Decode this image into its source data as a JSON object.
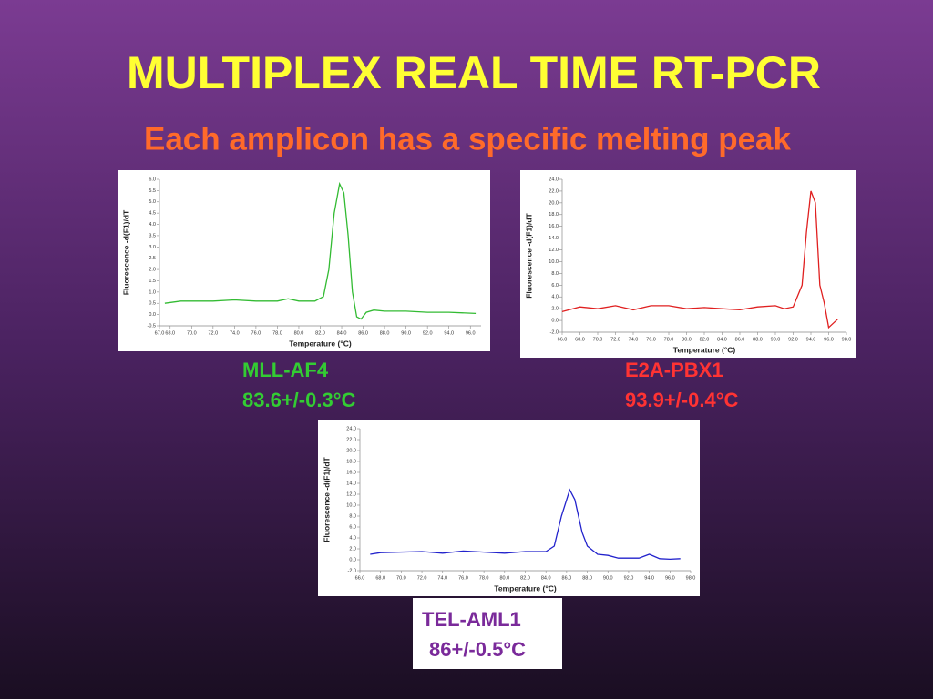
{
  "title": "MULTIPLEX REAL TIME RT-PCR",
  "subtitle": "Each amplicon has a specific melting peak",
  "chart_data": [
    {
      "type": "line",
      "label": "MLL-AF4",
      "melting_temp": "83.6+/-0.3°C",
      "label_color": "#33cc33",
      "x_label": "Temperature (°C)",
      "y_label": "Fluorescence -d(F1)/dT",
      "x": [
        67.5,
        69,
        72,
        74,
        76,
        78,
        79,
        80,
        81.5,
        82.3,
        82.8,
        83.3,
        83.8,
        84.2,
        84.6,
        85.0,
        85.4,
        85.8,
        86.3,
        87,
        88,
        90,
        92,
        94,
        96.5
      ],
      "series": [
        {
          "color": "#33bb33",
          "values": [
            0.5,
            0.6,
            0.6,
            0.65,
            0.6,
            0.6,
            0.7,
            0.6,
            0.6,
            0.8,
            2.0,
            4.5,
            5.8,
            5.4,
            3.5,
            1.0,
            -0.1,
            -0.2,
            0.1,
            0.2,
            0.15,
            0.15,
            0.1,
            0.1,
            0.05
          ]
        }
      ],
      "xlim": [
        67,
        97
      ],
      "xticks": [
        {
          "value": 67,
          "label": "67.0"
        },
        {
          "value": 68,
          "label": "68.0"
        },
        {
          "value": 70,
          "label": "70.0"
        },
        {
          "value": 72,
          "label": "72.0"
        },
        {
          "value": 74,
          "label": "74.0"
        },
        {
          "value": 76,
          "label": "76.0"
        },
        {
          "value": 78,
          "label": "78.0"
        },
        {
          "value": 80,
          "label": "80.0"
        },
        {
          "value": 82,
          "label": "82.0"
        },
        {
          "value": 84,
          "label": "84.0"
        },
        {
          "value": 86,
          "label": "86.0"
        },
        {
          "value": 88,
          "label": "88.0"
        },
        {
          "value": 90,
          "label": "90.0"
        },
        {
          "value": 92,
          "label": "92.0"
        },
        {
          "value": 94,
          "label": "94.0"
        },
        {
          "value": 96,
          "label": "96.0"
        }
      ],
      "ylim": [
        -0.5,
        6.0
      ],
      "yticks": [
        -0.5,
        {
          "value": 0,
          "label": "0.0"
        },
        0.5,
        {
          "value": 1,
          "label": "1.0"
        },
        1.5,
        {
          "value": 2,
          "label": "2.0"
        },
        2.5,
        {
          "value": 3,
          "label": "3.0"
        },
        3.5,
        {
          "value": 4,
          "label": "4.0"
        },
        4.5,
        {
          "value": 5,
          "label": "5.0"
        },
        5.5,
        {
          "value": 6,
          "label": "6.0"
        }
      ]
    },
    {
      "type": "line",
      "label": "E2A-PBX1",
      "melting_temp": "93.9+/-0.4°C",
      "label_color": "#ff3333",
      "x_label": "Temperature (°C)",
      "y_label": "Fluorescence -d(F1)/dT",
      "x": [
        66,
        68,
        70,
        72,
        74,
        76,
        78,
        80,
        82,
        84,
        86,
        88,
        90,
        91,
        92,
        93,
        93.5,
        94,
        94.5,
        95,
        95.5,
        96,
        96.5,
        97
      ],
      "series": [
        {
          "color": "#e02020",
          "values": [
            1.5,
            2.3,
            2.0,
            2.5,
            1.8,
            2.5,
            2.5,
            2.0,
            2.2,
            2.0,
            1.8,
            2.3,
            2.5,
            2.0,
            2.3,
            6,
            15,
            22,
            20,
            6,
            3,
            -1.2,
            -0.5,
            0.2
          ]
        }
      ],
      "xlim": [
        66,
        98
      ],
      "xticks": [
        {
          "value": 66,
          "label": "66.0"
        },
        {
          "value": 68,
          "label": "68.0"
        },
        {
          "value": 70,
          "label": "70.0"
        },
        {
          "value": 72,
          "label": "72.0"
        },
        {
          "value": 74,
          "label": "74.0"
        },
        {
          "value": 76,
          "label": "76.0"
        },
        {
          "value": 78,
          "label": "78.0"
        },
        {
          "value": 80,
          "label": "80.0"
        },
        {
          "value": 82,
          "label": "82.0"
        },
        {
          "value": 84,
          "label": "84.0"
        },
        {
          "value": 86,
          "label": "86.0"
        },
        {
          "value": 88,
          "label": "88.0"
        },
        {
          "value": 90,
          "label": "90.0"
        },
        {
          "value": 92,
          "label": "92.0"
        },
        {
          "value": 94,
          "label": "94.0"
        },
        {
          "value": 96,
          "label": "96.0"
        },
        {
          "value": 98,
          "label": "98.0"
        }
      ],
      "ylim": [
        -2,
        24
      ],
      "yticks": [
        {
          "value": -2,
          "label": "-2.0"
        },
        {
          "value": 0,
          "label": "0.0"
        },
        {
          "value": 2,
          "label": "2.0"
        },
        {
          "value": 4,
          "label": "4.0"
        },
        {
          "value": 6,
          "label": "6.0"
        },
        {
          "value": 8,
          "label": "8.0"
        },
        {
          "value": 10,
          "label": "10.0"
        },
        {
          "value": 12,
          "label": "12.0"
        },
        {
          "value": 14,
          "label": "14.0"
        },
        {
          "value": 16,
          "label": "16.0"
        },
        {
          "value": 18,
          "label": "18.0"
        },
        {
          "value": 20,
          "label": "20.0"
        },
        {
          "value": 22,
          "label": "22.0"
        },
        {
          "value": 24,
          "label": "24.0"
        }
      ]
    },
    {
      "type": "line",
      "label": "TEL-AML1",
      "melting_temp": "86+/-0.5°C",
      "label_color": "#7a2a9a",
      "x_label": "Temperature (°C)",
      "y_label": "Fluorescence -d(F1)/dT",
      "x": [
        67,
        68,
        72,
        74,
        76,
        78,
        80,
        82,
        84,
        84.8,
        85.5,
        86.3,
        86.8,
        87.5,
        88,
        89,
        90,
        91,
        93,
        94,
        95,
        96,
        97
      ],
      "series": [
        {
          "color": "#2222cc",
          "values": [
            1.0,
            1.3,
            1.5,
            1.2,
            1.6,
            1.4,
            1.2,
            1.5,
            1.5,
            2.5,
            8,
            12.8,
            11,
            5,
            2.5,
            1.0,
            0.8,
            0.3,
            0.3,
            1.0,
            0.2,
            0.1,
            0.2
          ]
        }
      ],
      "xlim": [
        66,
        98
      ],
      "xticks": [
        {
          "value": 66,
          "label": "66.0"
        },
        {
          "value": 68,
          "label": "68.0"
        },
        {
          "value": 70,
          "label": "70.0"
        },
        {
          "value": 72,
          "label": "72.0"
        },
        {
          "value": 74,
          "label": "74.0"
        },
        {
          "value": 76,
          "label": "76.0"
        },
        {
          "value": 78,
          "label": "78.0"
        },
        {
          "value": 80,
          "label": "80.0"
        },
        {
          "value": 82,
          "label": "82.0"
        },
        {
          "value": 84,
          "label": "84.0"
        },
        {
          "value": 86,
          "label": "86.0"
        },
        {
          "value": 88,
          "label": "88.0"
        },
        {
          "value": 90,
          "label": "90.0"
        },
        {
          "value": 92,
          "label": "92.0"
        },
        {
          "value": 94,
          "label": "94.0"
        },
        {
          "value": 96,
          "label": "96.0"
        },
        {
          "value": 98,
          "label": "98.0"
        }
      ],
      "ylim": [
        -2,
        24
      ],
      "yticks": [
        {
          "value": -2,
          "label": "-2.0"
        },
        {
          "value": 0,
          "label": "0.0"
        },
        {
          "value": 2,
          "label": "2.0"
        },
        {
          "value": 4,
          "label": "4.0"
        },
        {
          "value": 6,
          "label": "6.0"
        },
        {
          "value": 8,
          "label": "8.0"
        },
        {
          "value": 10,
          "label": "10.0"
        },
        {
          "value": 12,
          "label": "12.0"
        },
        {
          "value": 14,
          "label": "14.0"
        },
        {
          "value": 16,
          "label": "16.0"
        },
        {
          "value": 18,
          "label": "18.0"
        },
        {
          "value": 20,
          "label": "20.0"
        },
        {
          "value": 22,
          "label": "22.0"
        },
        {
          "value": 24,
          "label": "24.0"
        }
      ]
    }
  ]
}
